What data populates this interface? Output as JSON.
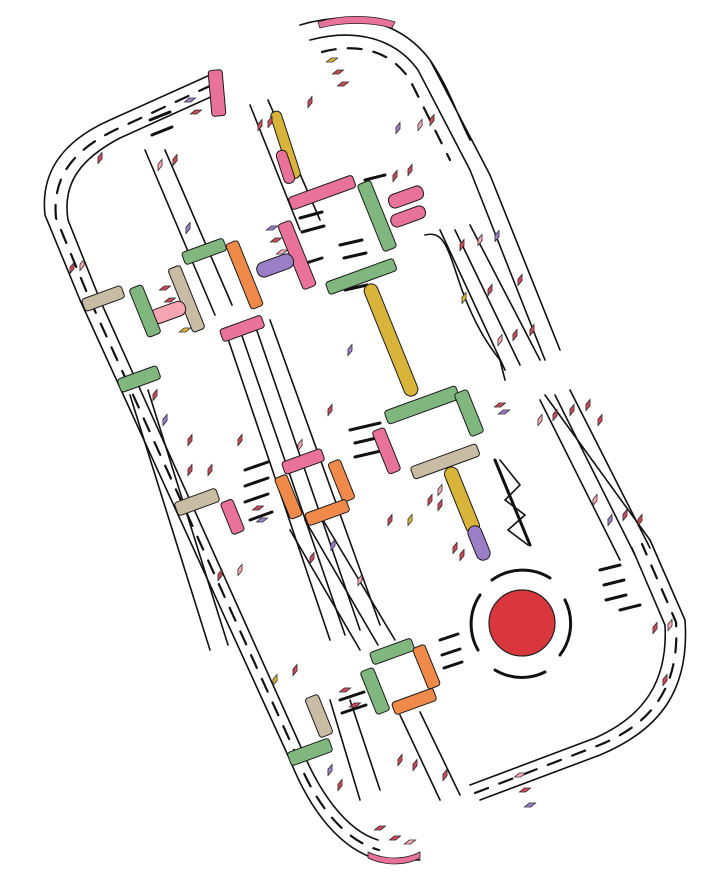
{
  "colors": {
    "background": "#ffffff",
    "road_line": "#111111",
    "signal_green": "#7fb77e",
    "signal_orange": "#f08a4b",
    "signal_pink": "#e8729a",
    "signal_tan": "#c8bca4",
    "signal_yellow": "#d9b43a",
    "signal_purple": "#9a7fc7",
    "roundabout_center": "#d9363e",
    "vehicle_red": "#c94b5a",
    "vehicle_pink": "#f6a6b2"
  },
  "icons": [
    "intersection-signal-icon",
    "vehicle-icon",
    "roundabout-icon",
    "lane-divider-icon"
  ]
}
